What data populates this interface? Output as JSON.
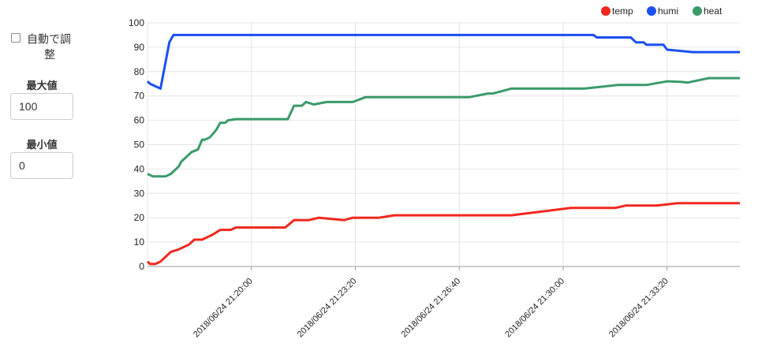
{
  "sidebar": {
    "auto_label_1": "自動で調",
    "auto_label_2": "整",
    "auto_checked": false,
    "max_label": "最大値",
    "max_value": "100",
    "min_label": "最小値",
    "min_value": "0"
  },
  "chart_data": {
    "type": "line",
    "ylim": [
      0,
      100
    ],
    "yticks": [
      "0",
      "10",
      "20",
      "30",
      "40",
      "50",
      "60",
      "70",
      "80",
      "90",
      "100"
    ],
    "x_tick_labels": [
      "2018/06/24 21:20:00",
      "2018/06/24 21:23:20",
      "2018/06/24 21:26:40",
      "2018/06/24 21:30:00",
      "2018/06/24 21:33:20"
    ],
    "x_tick_seconds": [
      200,
      400,
      600,
      800,
      1000
    ],
    "x_range_seconds": [
      0,
      1140
    ],
    "grid": true,
    "legend_position": "top-right",
    "series": [
      {
        "name": "temp",
        "color": "#f0281e",
        "x": [
          0,
          5,
          15,
          25,
          45,
          60,
          80,
          90,
          105,
          115,
          125,
          140,
          160,
          170,
          175,
          180,
          205,
          255,
          265,
          282,
          292,
          310,
          330,
          378,
          395,
          415,
          418,
          425,
          445,
          475,
          543,
          595,
          600,
          610,
          625,
          640,
          650,
          665,
          700,
          700,
          815,
          880,
          900,
          920,
          945,
          950,
          980,
          1020,
          1140
        ],
        "y": [
          2,
          1,
          1,
          2,
          6,
          7,
          9,
          11,
          11,
          12,
          13,
          15,
          15,
          16,
          16,
          16,
          16,
          16,
          16,
          19,
          19,
          19,
          20,
          19,
          20,
          20,
          20,
          20,
          20,
          21,
          21,
          21,
          21,
          21,
          21,
          21,
          21,
          21,
          21,
          21,
          24,
          24,
          24,
          25,
          25,
          25,
          25,
          26,
          26
        ]
      },
      {
        "name": "humi",
        "color": "#1a4ff0",
        "x": [
          0,
          5,
          25,
          42,
          50,
          56,
          60,
          70,
          100,
          150,
          200,
          250,
          300,
          350,
          400,
          450,
          500,
          540,
          575,
          600,
          650,
          700,
          750,
          800,
          850,
          858,
          865,
          870,
          915,
          920,
          930,
          940,
          955,
          960,
          993,
          1000,
          1050,
          1140
        ],
        "y": [
          76,
          75,
          73,
          92,
          95,
          95,
          95,
          95,
          95,
          95,
          95,
          95,
          95,
          95,
          95,
          95,
          95,
          95,
          95,
          95,
          95,
          95,
          95,
          95,
          95,
          95,
          94,
          94,
          94,
          94,
          94,
          92,
          92,
          91,
          91,
          89,
          88,
          88
        ]
      },
      {
        "name": "heat",
        "color": "#3a9a6a",
        "x": [
          0,
          10,
          25,
          35,
          45,
          60,
          65,
          85,
          97,
          105,
          110,
          120,
          132,
          140,
          150,
          155,
          170,
          175,
          190,
          260,
          270,
          282,
          297,
          305,
          320,
          345,
          395,
          420,
          540,
          615,
          620,
          655,
          665,
          700,
          755,
          775,
          840,
          905,
          920,
          945,
          960,
          1000,
          1006,
          1020,
          1025,
          1040,
          1080,
          1140
        ],
        "y": [
          38,
          37,
          37,
          37,
          38,
          41,
          43,
          47,
          48,
          52,
          52,
          53,
          56,
          59,
          59,
          60,
          60.5,
          60.5,
          60.5,
          60.5,
          60.5,
          66,
          66,
          67.5,
          66.5,
          67.5,
          67.5,
          69.5,
          69.5,
          69.5,
          69.5,
          71,
          71,
          73,
          73,
          73,
          73,
          74.5,
          74.5,
          74.5,
          74.5,
          76,
          76,
          75.8,
          75.8,
          75.5,
          77.3,
          77.3
        ]
      }
    ]
  }
}
